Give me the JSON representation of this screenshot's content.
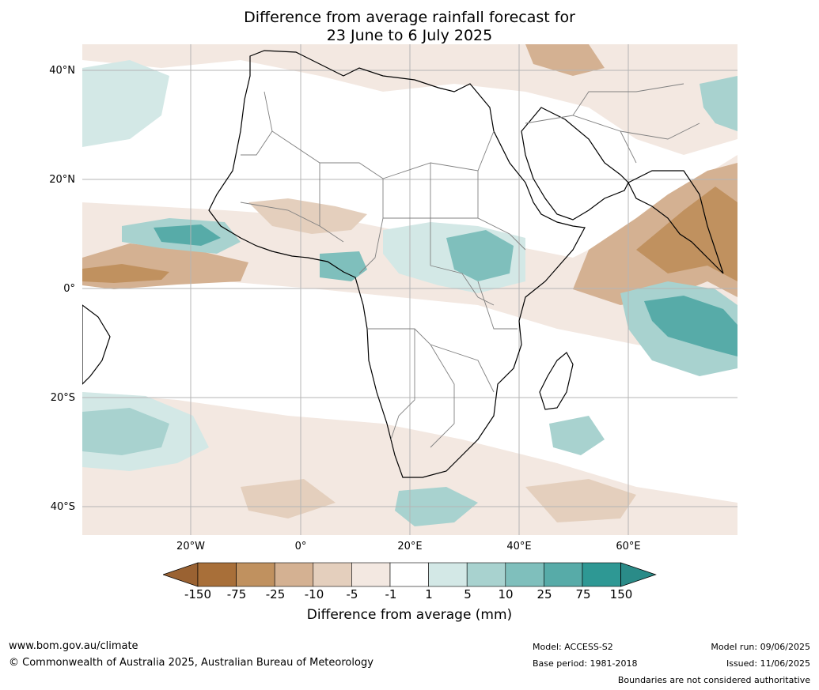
{
  "title": {
    "line1": "Difference from average rainfall forecast for",
    "line2": "23 June to 6 July 2025"
  },
  "map": {
    "lat_labels": [
      "40°N",
      "20°N",
      "0°",
      "20°S",
      "40°S"
    ],
    "lon_labels": [
      "20°W",
      "0°",
      "20°E",
      "40°E",
      "60°E"
    ]
  },
  "colorbar": {
    "ticks": [
      "-150",
      "-75",
      "-25",
      "-10",
      "-5",
      "-1",
      "1",
      "5",
      "10",
      "25",
      "75",
      "150"
    ],
    "colors": [
      "#a86f39",
      "#c0915f",
      "#d4b192",
      "#e4cfbd",
      "#f3e8e1",
      "#ffffff",
      "#d3e8e6",
      "#a8d2cf",
      "#7fbfbc",
      "#57aba8",
      "#2e9894"
    ],
    "under_color": "#9a6232",
    "over_color": "#2a8b88",
    "label": "Difference from average (mm)"
  },
  "footer": {
    "website": "www.bom.gov.au/climate",
    "copyright": "© Commonwealth of Australia 2025, Australian Bureau of Meteorology",
    "model": "Model: ACCESS-S2",
    "base_period": "Base period: 1981-2018",
    "model_run": "Model run: 09/06/2025",
    "issued": "Issued: 11/06/2025",
    "disclaimer": "Boundaries are not considered authoritative"
  }
}
